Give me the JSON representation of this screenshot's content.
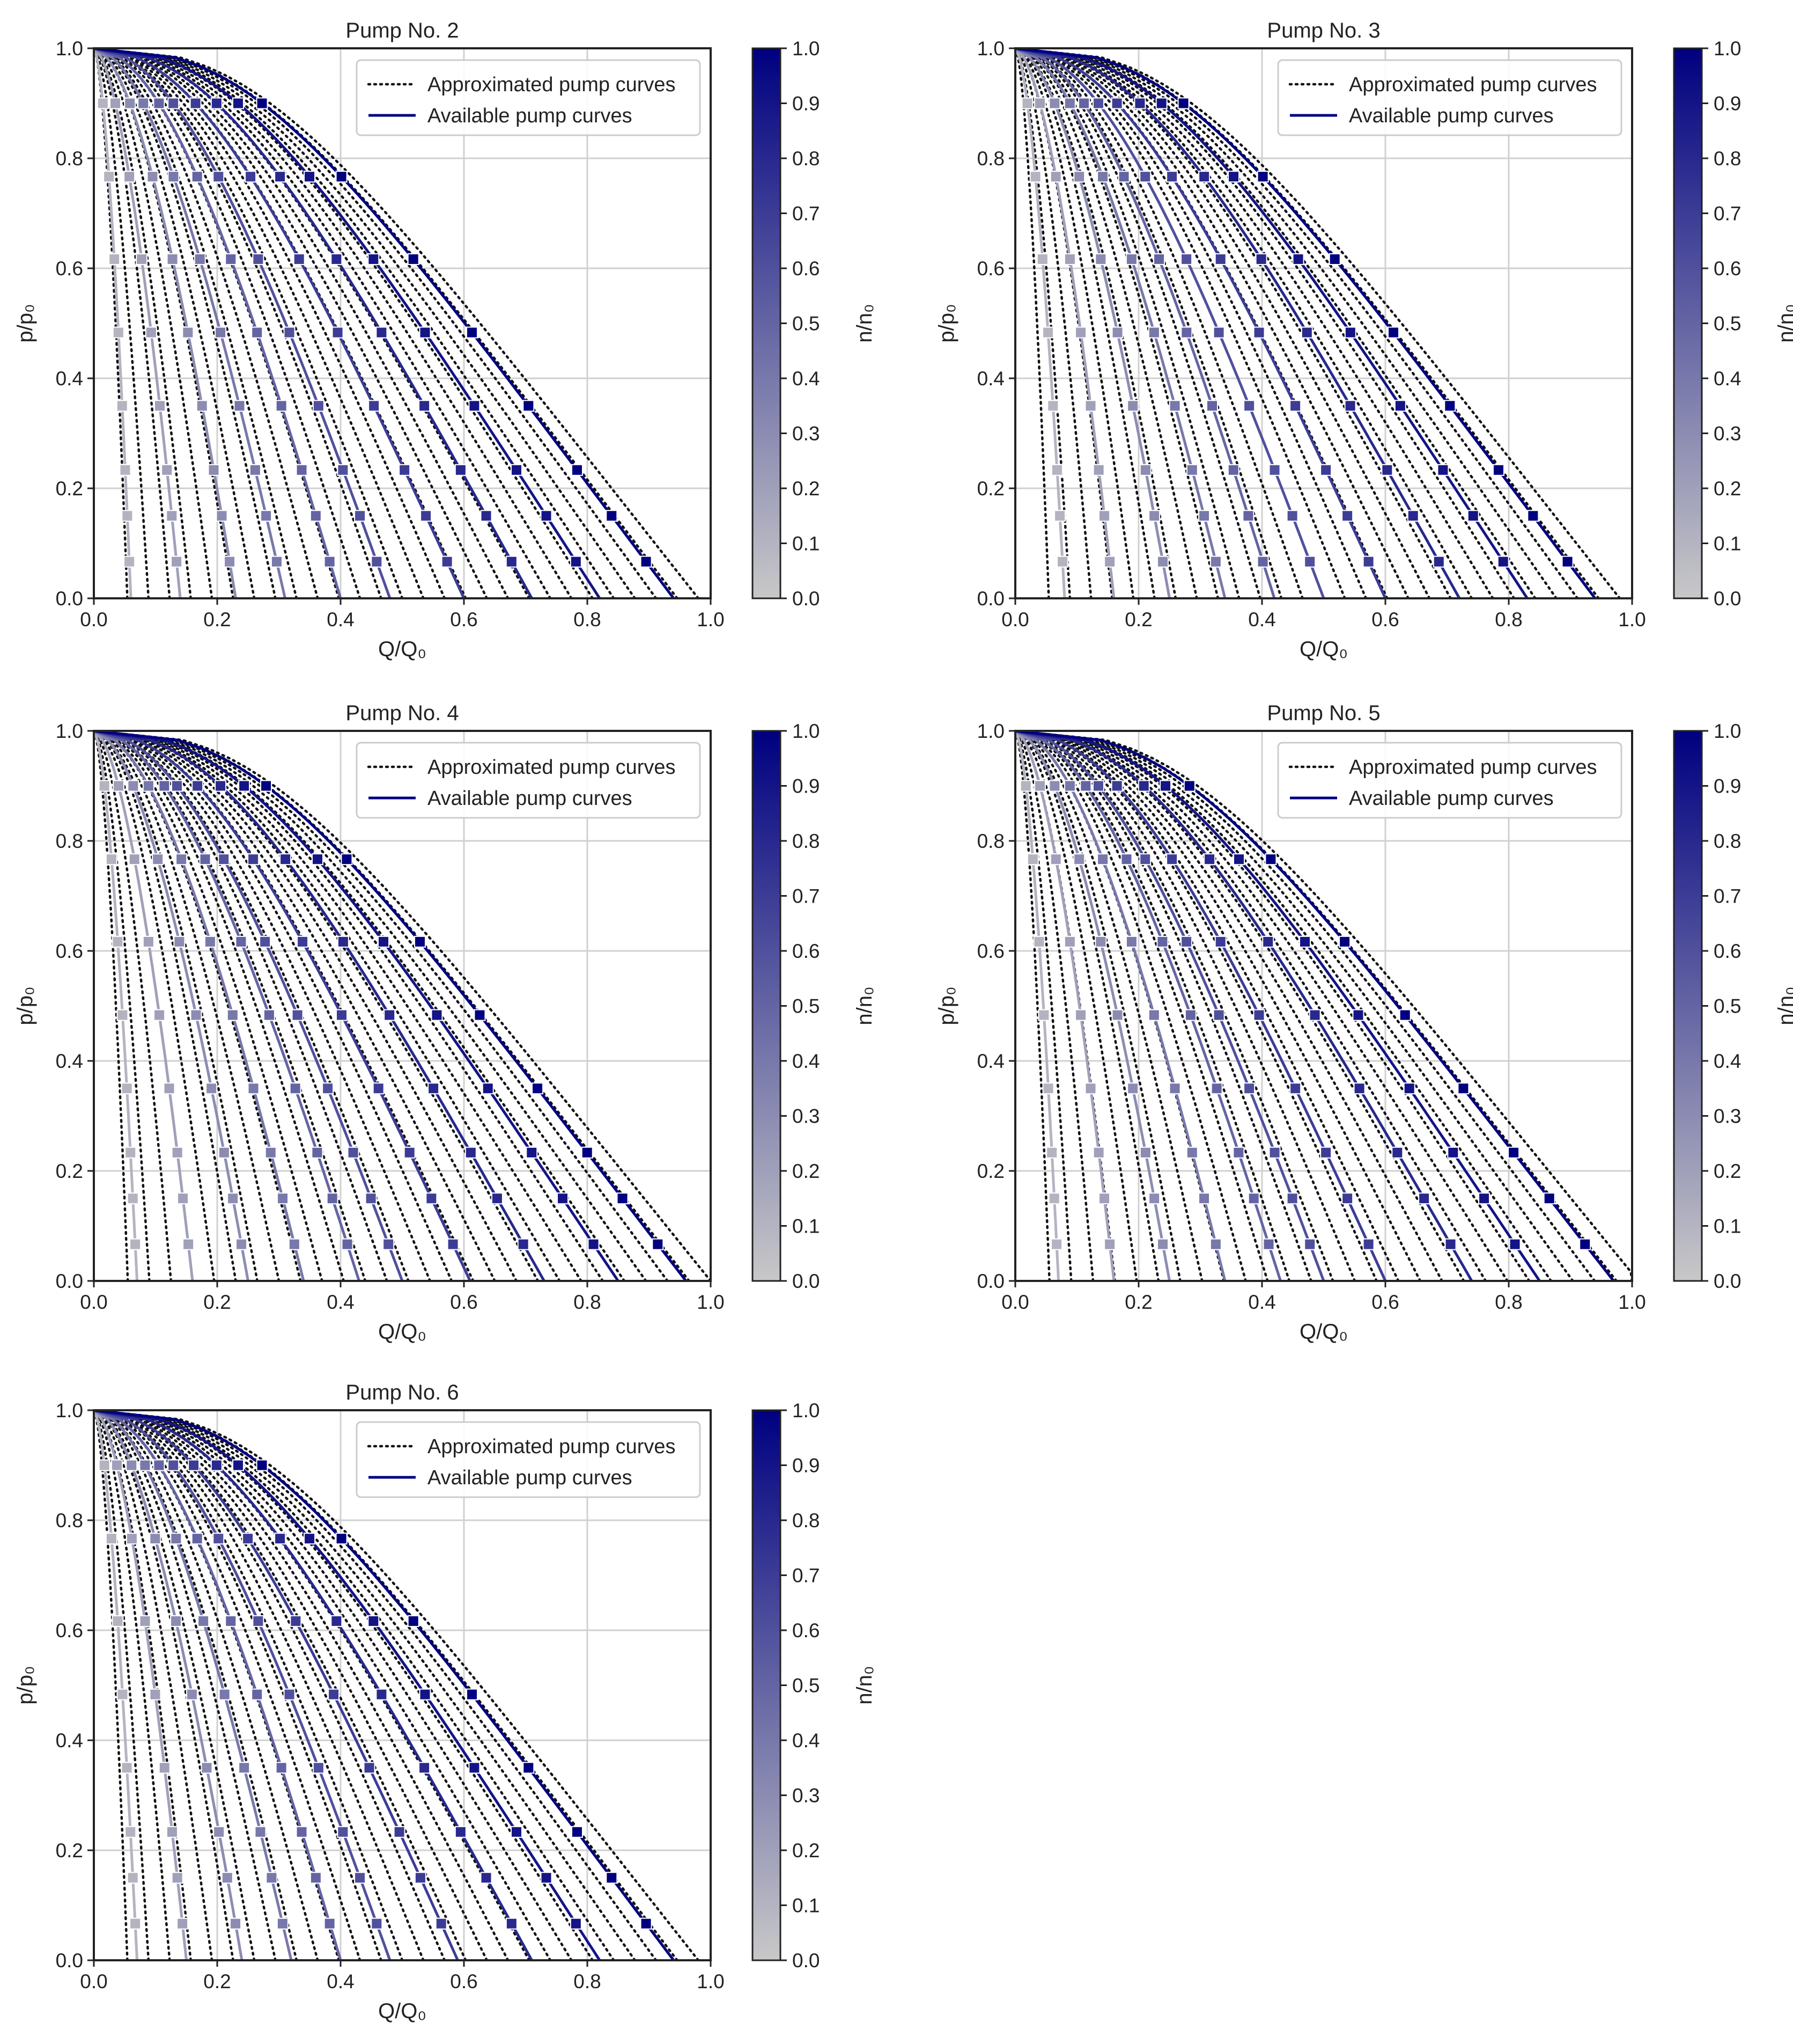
{
  "figure": {
    "colors": {
      "high": "#000080",
      "low": "#c8c8c8",
      "approx": "#111111",
      "grid": "#d0d0d0",
      "frame": "#222222"
    },
    "colorbar_label": "n/n₀",
    "colorbar_ticks": [
      "0.0",
      "0.1",
      "0.2",
      "0.3",
      "0.4",
      "0.5",
      "0.6",
      "0.7",
      "0.8",
      "0.9",
      "1.0"
    ]
  },
  "chart_data": [
    {
      "type": "line",
      "title": "Pump No. 2",
      "xlabel": "Q/Q₀",
      "ylabel": "p/p₀",
      "xlim": [
        0,
        1
      ],
      "ylim": [
        0,
        1
      ],
      "xticks": [
        "0.0",
        "0.2",
        "0.4",
        "0.6",
        "0.8",
        "1.0"
      ],
      "yticks": [
        "0.0",
        "0.2",
        "0.4",
        "0.6",
        "0.8",
        "1.0"
      ],
      "legend": [
        "Approximated pump curves",
        "Available pump curves"
      ],
      "legend_position": "top-right",
      "grid": true,
      "available_speeds": [
        0.1,
        0.2,
        0.3,
        0.4,
        0.5,
        0.6,
        0.7,
        0.8,
        0.9,
        1.0
      ],
      "q_at_zero_pressure": [
        0.06,
        0.14,
        0.23,
        0.31,
        0.4,
        0.48,
        0.6,
        0.71,
        0.82,
        0.94
      ],
      "approximated_curve_count": 28
    },
    {
      "type": "line",
      "title": "Pump No. 3",
      "xlabel": "Q/Q₀",
      "ylabel": "p/p₀",
      "xlim": [
        0,
        1
      ],
      "ylim": [
        0,
        1
      ],
      "xticks": [
        "0.0",
        "0.2",
        "0.4",
        "0.6",
        "0.8",
        "1.0"
      ],
      "yticks": [
        "0.0",
        "0.2",
        "0.4",
        "0.6",
        "0.8",
        "1.0"
      ],
      "legend": [
        "Approximated pump curves",
        "Available pump curves"
      ],
      "legend_position": "top-right",
      "grid": true,
      "available_speeds": [
        0.1,
        0.2,
        0.3,
        0.4,
        0.5,
        0.6,
        0.7,
        0.8,
        0.9,
        1.0
      ],
      "q_at_zero_pressure": [
        0.08,
        0.16,
        0.25,
        0.34,
        0.42,
        0.5,
        0.6,
        0.72,
        0.83,
        0.94
      ],
      "approximated_curve_count": 28
    },
    {
      "type": "line",
      "title": "Pump No. 4",
      "xlabel": "Q/Q₀",
      "ylabel": "p/p₀",
      "xlim": [
        0,
        1
      ],
      "ylim": [
        0,
        1
      ],
      "xticks": [
        "0.0",
        "0.2",
        "0.4",
        "0.6",
        "0.8",
        "1.0"
      ],
      "yticks": [
        "0.0",
        "0.2",
        "0.4",
        "0.6",
        "0.8",
        "1.0"
      ],
      "legend": [
        "Approximated pump curves",
        "Available pump curves"
      ],
      "legend_position": "top-right",
      "grid": true,
      "available_speeds": [
        0.1,
        0.2,
        0.3,
        0.4,
        0.5,
        0.6,
        0.7,
        0.8,
        0.9,
        1.0
      ],
      "q_at_zero_pressure": [
        0.07,
        0.16,
        0.25,
        0.34,
        0.43,
        0.5,
        0.61,
        0.73,
        0.85,
        0.96
      ],
      "approximated_curve_count": 28
    },
    {
      "type": "line",
      "title": "Pump No. 5",
      "xlabel": "Q/Q₀",
      "ylabel": "p/p₀",
      "xlim": [
        0,
        1
      ],
      "ylim": [
        0,
        1
      ],
      "xticks": [
        "0.0",
        "0.2",
        "0.4",
        "0.6",
        "0.8",
        "1.0"
      ],
      "yticks": [
        "0.0",
        "0.2",
        "0.4",
        "0.6",
        "0.8",
        "1.0"
      ],
      "legend": [
        "Approximated pump curves",
        "Available pump curves"
      ],
      "legend_position": "top-right",
      "grid": true,
      "available_speeds": [
        0.1,
        0.2,
        0.3,
        0.4,
        0.5,
        0.6,
        0.7,
        0.8,
        0.9,
        1.0
      ],
      "q_at_zero_pressure": [
        0.07,
        0.16,
        0.25,
        0.34,
        0.43,
        0.5,
        0.6,
        0.74,
        0.85,
        0.97
      ],
      "approximated_curve_count": 28
    },
    {
      "type": "line",
      "title": "Pump No. 6",
      "xlabel": "Q/Q₀",
      "ylabel": "p/p₀",
      "xlim": [
        0,
        1
      ],
      "ylim": [
        0,
        1
      ],
      "xticks": [
        "0.0",
        "0.2",
        "0.4",
        "0.6",
        "0.8",
        "1.0"
      ],
      "yticks": [
        "0.0",
        "0.2",
        "0.4",
        "0.6",
        "0.8",
        "1.0"
      ],
      "legend": [
        "Approximated pump curves",
        "Available pump curves"
      ],
      "legend_position": "top-right",
      "grid": true,
      "available_speeds": [
        0.1,
        0.2,
        0.3,
        0.4,
        0.5,
        0.6,
        0.7,
        0.8,
        0.9,
        1.0
      ],
      "q_at_zero_pressure": [
        0.07,
        0.15,
        0.24,
        0.32,
        0.4,
        0.48,
        0.59,
        0.71,
        0.82,
        0.94
      ],
      "approximated_curve_count": 28
    }
  ]
}
